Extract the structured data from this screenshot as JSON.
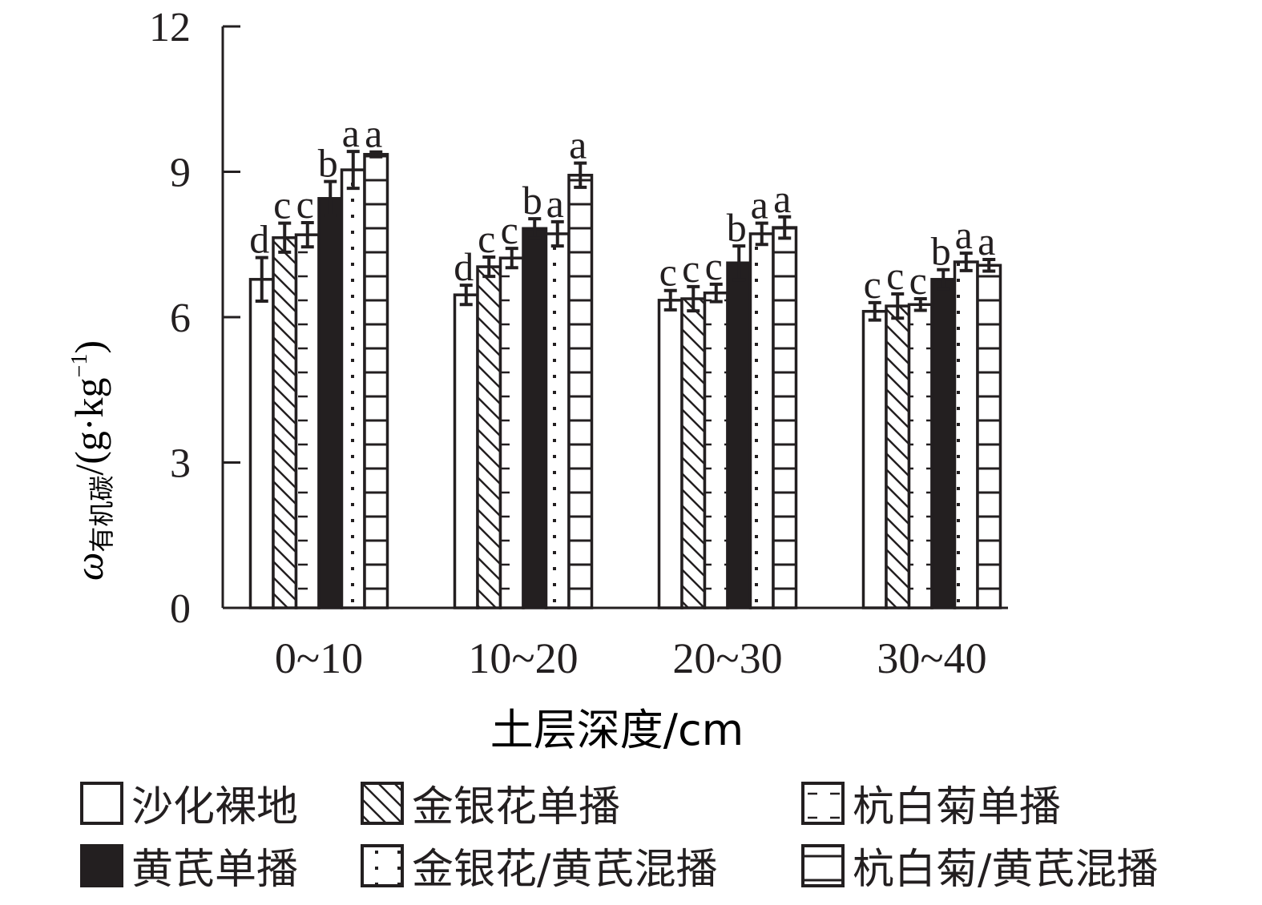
{
  "chart_data": {
    "type": "bar",
    "xlabel": "土层深度/cm",
    "ylabel_main": "ω",
    "ylabel_sub": "有机碳",
    "ylabel_unit": "/(g·kg",
    "ylabel_sup": "−1",
    "ylabel_close": ")",
    "ylim": [
      0,
      12
    ],
    "yticks": [
      0,
      3,
      6,
      9,
      12
    ],
    "ytick_labels": [
      "0",
      "3",
      "6",
      "9",
      "12"
    ],
    "categories": [
      "0~10",
      "10~20",
      "20~30",
      "30~40"
    ],
    "legend_position": "bottom",
    "series": [
      {
        "name": "沙化裸地",
        "pattern": "blank",
        "values": [
          6.78,
          6.46,
          6.35,
          6.12
        ],
        "errors": [
          0.45,
          0.2,
          0.2,
          0.18
        ],
        "letters": [
          "d",
          "d",
          "c",
          "c"
        ]
      },
      {
        "name": "金银花单播",
        "pattern": "diagonal",
        "values": [
          7.64,
          7.04,
          6.38,
          6.23
        ],
        "errors": [
          0.3,
          0.2,
          0.25,
          0.25
        ],
        "letters": [
          "c",
          "c",
          "c",
          "c"
        ]
      },
      {
        "name": "杭白菊单播",
        "pattern": "dash",
        "values": [
          7.7,
          7.22,
          6.5,
          6.26
        ],
        "errors": [
          0.25,
          0.2,
          0.18,
          0.12
        ],
        "letters": [
          "c",
          "c",
          "c",
          "c"
        ]
      },
      {
        "name": "黄芪单播",
        "pattern": "solid",
        "values": [
          8.45,
          7.83,
          7.12,
          6.78
        ],
        "errors": [
          0.35,
          0.2,
          0.35,
          0.2
        ],
        "letters": [
          "b",
          "b",
          "b",
          "b"
        ]
      },
      {
        "name": "金银花/黄芪混播",
        "pattern": "dots",
        "values": [
          9.04,
          7.72,
          7.72,
          7.14
        ],
        "errors": [
          0.38,
          0.25,
          0.22,
          0.18
        ],
        "letters": [
          "a",
          "a",
          "a",
          "a"
        ]
      },
      {
        "name": "杭白菊/黄芪混播",
        "pattern": "hlines",
        "values": [
          9.36,
          8.93,
          7.85,
          7.07
        ],
        "errors": [
          0.05,
          0.25,
          0.22,
          0.12
        ],
        "letters": [
          "a",
          "a",
          "a",
          "a"
        ]
      }
    ],
    "colors": {
      "ink": "#231f20",
      "fill": "#ffffff"
    }
  }
}
